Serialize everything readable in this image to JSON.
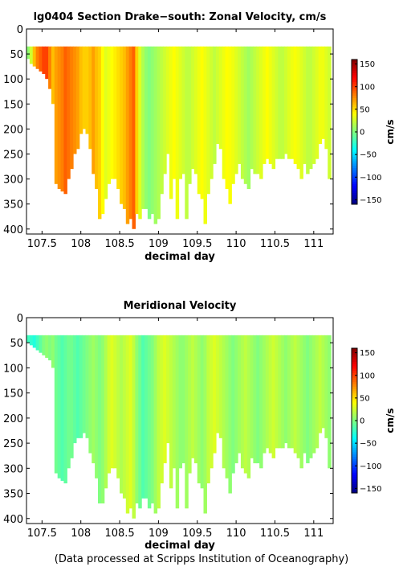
{
  "chart_data": [
    {
      "type": "heatmap",
      "title": "lg0404 Section Drake−south: Zonal Velocity, cm/s",
      "xlabel": "decimal day",
      "ylabel": "",
      "xlim": [
        107.3,
        111.25
      ],
      "ylim": [
        410,
        0
      ],
      "xticks": [
        "107.5",
        "108",
        "108.5",
        "109",
        "109.5",
        "110",
        "110.5",
        "111"
      ],
      "yticks": [
        "0",
        "50",
        "100",
        "150",
        "200",
        "250",
        "300",
        "350",
        "400"
      ],
      "colorbar": {
        "label": "cm/s",
        "range": [
          -160,
          160
        ],
        "ticks": [
          "150",
          "100",
          "50",
          "0",
          "−50",
          "−100",
          "−150"
        ]
      },
      "top_depth": 35,
      "max_depth": [
        60,
        70,
        75,
        80,
        85,
        90,
        100,
        120,
        150,
        310,
        320,
        325,
        330,
        300,
        280,
        250,
        240,
        210,
        200,
        210,
        240,
        290,
        320,
        380,
        370,
        340,
        310,
        300,
        300,
        320,
        350,
        360,
        390,
        380,
        400,
        370,
        380,
        360,
        360,
        380,
        370,
        390,
        380,
        330,
        290,
        250,
        340,
        300,
        380,
        300,
        290,
        380,
        310,
        280,
        290,
        330,
        340,
        390,
        330,
        300,
        270,
        230,
        240,
        300,
        320,
        350,
        310,
        290,
        270,
        300,
        310,
        320,
        280,
        290,
        290,
        300,
        270,
        260,
        270,
        280,
        260,
        260,
        260,
        250,
        260,
        260,
        270,
        280,
        300,
        270,
        290,
        280,
        270,
        260,
        230,
        220,
        240,
        300
      ],
      "velocity": [
        5,
        25,
        60,
        80,
        90,
        100,
        100,
        80,
        60,
        70,
        75,
        80,
        90,
        85,
        80,
        75,
        70,
        60,
        55,
        55,
        60,
        70,
        60,
        55,
        40,
        30,
        35,
        40,
        45,
        50,
        55,
        60,
        70,
        80,
        90,
        55,
        30,
        15,
        5,
        0,
        5,
        10,
        15,
        20,
        25,
        30,
        35,
        40,
        35,
        30,
        25,
        20,
        20,
        25,
        30,
        35,
        40,
        35,
        30,
        25,
        20,
        25,
        30,
        35,
        40,
        38,
        35,
        30,
        25,
        20,
        15,
        10,
        15,
        20,
        25,
        30,
        35,
        40,
        35,
        30,
        25,
        20,
        20,
        25,
        30,
        35,
        38,
        35,
        30,
        25,
        20,
        20,
        25,
        30,
        35,
        35,
        30,
        25
      ]
    },
    {
      "type": "heatmap",
      "title": "Meridional Velocity",
      "xlabel": "decimal day",
      "ylabel": "",
      "xlim": [
        107.3,
        111.25
      ],
      "ylim": [
        410,
        0
      ],
      "xticks": [
        "107.5",
        "108",
        "108.5",
        "109",
        "109.5",
        "110",
        "110.5",
        "111"
      ],
      "yticks": [
        "0",
        "50",
        "100",
        "150",
        "200",
        "250",
        "300",
        "350",
        "400"
      ],
      "colorbar": {
        "label": "cm/s",
        "range": [
          -160,
          160
        ],
        "ticks": [
          "150",
          "100",
          "50",
          "0",
          "−50",
          "−100",
          "−150"
        ]
      },
      "top_depth": 35,
      "max_depth": [
        50,
        55,
        60,
        65,
        70,
        75,
        80,
        85,
        100,
        310,
        320,
        325,
        330,
        300,
        280,
        250,
        240,
        240,
        230,
        240,
        270,
        290,
        320,
        370,
        370,
        340,
        310,
        300,
        300,
        320,
        350,
        360,
        390,
        380,
        400,
        370,
        380,
        360,
        360,
        380,
        370,
        390,
        380,
        330,
        290,
        250,
        340,
        300,
        380,
        300,
        290,
        380,
        310,
        280,
        290,
        330,
        340,
        390,
        330,
        300,
        270,
        230,
        240,
        300,
        320,
        350,
        310,
        290,
        270,
        300,
        310,
        320,
        280,
        290,
        290,
        300,
        270,
        260,
        270,
        280,
        260,
        260,
        260,
        250,
        260,
        260,
        270,
        280,
        300,
        270,
        290,
        280,
        270,
        260,
        230,
        220,
        240,
        300
      ],
      "velocity": [
        -20,
        -25,
        -30,
        -20,
        -10,
        0,
        5,
        0,
        5,
        -5,
        -10,
        -15,
        -10,
        -5,
        -5,
        -10,
        -15,
        -10,
        -5,
        0,
        5,
        10,
        5,
        0,
        5,
        15,
        25,
        30,
        25,
        20,
        15,
        20,
        25,
        30,
        20,
        5,
        -5,
        -15,
        -10,
        -5,
        0,
        10,
        20,
        25,
        30,
        25,
        20,
        15,
        10,
        5,
        5,
        10,
        15,
        20,
        15,
        10,
        5,
        10,
        20,
        25,
        30,
        25,
        20,
        15,
        10,
        5,
        0,
        5,
        10,
        15,
        20,
        15,
        10,
        5,
        0,
        5,
        10,
        15,
        20,
        25,
        20,
        15,
        10,
        5,
        10,
        15,
        20,
        15,
        10,
        5,
        0,
        5,
        10,
        15,
        20,
        15,
        10,
        5
      ]
    }
  ],
  "footer": "(Data processed at Scripps Institution of Oceanography)"
}
